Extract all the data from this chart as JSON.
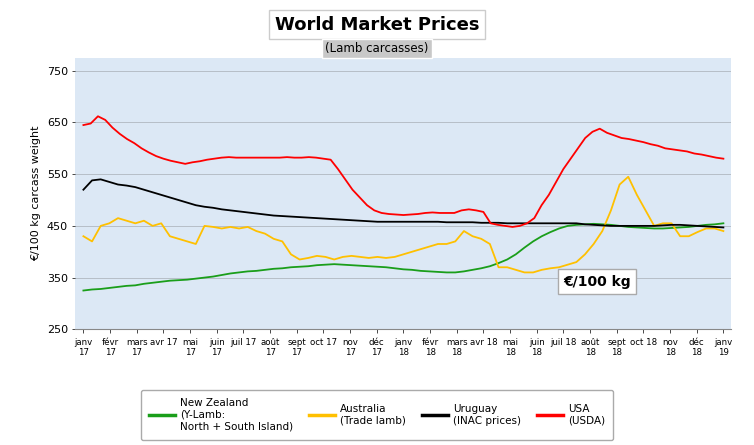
{
  "title": "World Market Prices",
  "subtitle": "(Lamb carcasses)",
  "ylabel": "€/100 kg carcass weight",
  "annotation": "€/100 kg",
  "ylim": [
    250,
    775
  ],
  "yticks": [
    250,
    350,
    450,
    550,
    650,
    750
  ],
  "background_color": "#ffffff",
  "plot_bg": "#dce8f5",
  "tick_labels": [
    "janv\n17",
    "févr\n17",
    "mars\n17",
    "avr 17",
    "mai\n17",
    "juin\n17",
    "juil 17",
    "août\n17",
    "sept\n17",
    "oct 17",
    "nov\n17",
    "déc\n17",
    "janv\n18",
    "févr\n18",
    "mars\n18",
    "avr 18",
    "mai\n18",
    "juin\n18",
    "juil 18",
    "août\n18",
    "sept\n18",
    "oct 18",
    "nov\n18",
    "déc\n18",
    "janv\n19"
  ],
  "legend": [
    {
      "label": "New Zealand\n(Y-Lamb:\nNorth + South Island)",
      "color": "#1a9e1a"
    },
    {
      "label": "Australia\n(Trade lamb)",
      "color": "#ffc000"
    },
    {
      "label": "Uruguay\n(INAC prices)",
      "color": "#000000"
    },
    {
      "label": "USA\n(USDA)",
      "color": "#ff0000"
    }
  ],
  "new_zealand": [
    325,
    327,
    328,
    330,
    332,
    334,
    335,
    338,
    340,
    342,
    344,
    345,
    346,
    348,
    350,
    352,
    355,
    358,
    360,
    362,
    363,
    365,
    367,
    368,
    370,
    371,
    372,
    374,
    375,
    376,
    375,
    374,
    373,
    372,
    371,
    370,
    368,
    366,
    365,
    363,
    362,
    361,
    360,
    360,
    362,
    365,
    368,
    372,
    378,
    385,
    395,
    408,
    420,
    430,
    438,
    445,
    450,
    452,
    453,
    454,
    453,
    452,
    450,
    448,
    447,
    446,
    445,
    445,
    446,
    447,
    448,
    450,
    452,
    453,
    455
  ],
  "australia": [
    430,
    420,
    450,
    455,
    465,
    460,
    455,
    460,
    450,
    455,
    430,
    425,
    420,
    415,
    450,
    448,
    445,
    448,
    445,
    448,
    440,
    435,
    425,
    420,
    395,
    385,
    388,
    392,
    390,
    385,
    390,
    392,
    390,
    388,
    390,
    388,
    390,
    395,
    400,
    405,
    410,
    415,
    415,
    420,
    440,
    430,
    425,
    415,
    370,
    370,
    365,
    360,
    360,
    365,
    368,
    370,
    375,
    380,
    395,
    415,
    440,
    480,
    530,
    545,
    510,
    480,
    450,
    455,
    455,
    430,
    430,
    438,
    445,
    445,
    440
  ],
  "uruguay": [
    520,
    538,
    540,
    535,
    530,
    528,
    525,
    520,
    515,
    510,
    505,
    500,
    495,
    490,
    487,
    485,
    482,
    480,
    478,
    476,
    474,
    472,
    470,
    469,
    468,
    467,
    466,
    465,
    464,
    463,
    462,
    461,
    460,
    459,
    458,
    458,
    458,
    458,
    458,
    458,
    458,
    458,
    457,
    457,
    457,
    457,
    456,
    456,
    456,
    455,
    455,
    455,
    455,
    455,
    455,
    455,
    455,
    455,
    453,
    452,
    451,
    450,
    450,
    450,
    450,
    450,
    450,
    451,
    452,
    452,
    451,
    450,
    449,
    448,
    447
  ],
  "usa": [
    645,
    648,
    662,
    655,
    640,
    628,
    618,
    610,
    600,
    592,
    585,
    580,
    576,
    573,
    570,
    573,
    575,
    578,
    580,
    582,
    583,
    582,
    582,
    582,
    582,
    582,
    582,
    582,
    583,
    582,
    582,
    583,
    582,
    580,
    578,
    560,
    540,
    520,
    505,
    490,
    480,
    475,
    473,
    472,
    471,
    472,
    473,
    475,
    476,
    475,
    475,
    475,
    480,
    482,
    480,
    477,
    455,
    452,
    450,
    448,
    450,
    455,
    465,
    490,
    510,
    535,
    560,
    580,
    600,
    620,
    632,
    638,
    630,
    625,
    620,
    618,
    615,
    612,
    608,
    605,
    600,
    598,
    596,
    594,
    590,
    588,
    585,
    582,
    580
  ]
}
